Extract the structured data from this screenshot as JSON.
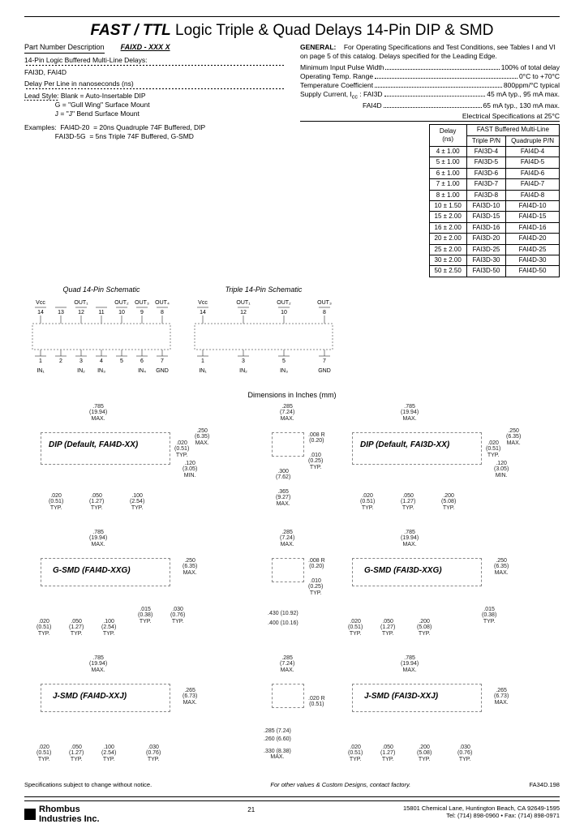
{
  "title_bold": "FAST / TTL",
  "title_rest": " Logic Triple & Quad Delays 14-Pin DIP & SMD",
  "left": {
    "part_label": "Part Number Description",
    "part_code": "FAIXD - XXX X",
    "line1": "14-Pin Logic Buffered Multi-Line Delays:",
    "line2": "FAI3D, FAI4D",
    "line3": "Delay Per Line in nanoseconds (ns)",
    "lead_label": "Lead Style:",
    "lead1": "Blank = Auto-Insertable DIP",
    "lead2": "G = \"Gull Wing\" Surface Mount",
    "lead3": "J = \"J\" Bend Surface Mount",
    "ex_label": "Examples:",
    "ex1a": "FAI4D-20",
    "ex1b": "= 20ns Quadruple 74F Buffered, DIP",
    "ex2a": "FAI3D-5G",
    "ex2b": "= 5ns Triple 74F Buffered, G-SMD"
  },
  "right": {
    "gen_label": "GENERAL:",
    "gen_text": "For Operating Specifications and Test Conditions, see Tables I and VI on page 5 of this catalog. Delays specified for the Leading Edge.",
    "spec1_l": "Minimum Input Pulse Width",
    "spec1_r": "100% of total delay",
    "spec2_l": "Operating Temp. Range",
    "spec2_r": "0°C to +70°C",
    "spec3_l": "Temperature Coefficient",
    "spec3_r": "800ppm/°C typical",
    "spec4_l": "Supply Current, I",
    "spec4_p": "FAI3D",
    "spec4_r": "45 mA typ., 95 mA max.",
    "spec5_p": "FAI4D",
    "spec5_r": "65 mA typ., 130 mA max.",
    "table_title": "Electrical Specifications at 25°C"
  },
  "table": {
    "h1": "Delay",
    "h1b": "(ns)",
    "h2": "FAST Buffered Multi-Line",
    "h2a": "Triple P/N",
    "h2b": "Quadruple P/N",
    "rows": [
      [
        "4 ± 1.00",
        "FAI3D-4",
        "FAI4D-4"
      ],
      [
        "5 ± 1.00",
        "FAI3D-5",
        "FAI4D-5"
      ],
      [
        "6 ± 1.00",
        "FAI3D-6",
        "FAI4D-6"
      ],
      [
        "7 ± 1.00",
        "FAI3D-7",
        "FAI4D-7"
      ],
      [
        "8 ± 1.00",
        "FAI3D-8",
        "FAI4D-8"
      ],
      [
        "10 ± 1.50",
        "FAI3D-10",
        "FAI4D-10"
      ],
      [
        "15 ± 2.00",
        "FAI3D-15",
        "FAI4D-15"
      ],
      [
        "16 ± 2.00",
        "FAI3D-16",
        "FAI4D-16"
      ],
      [
        "20 ± 2.00",
        "FAI3D-20",
        "FAI4D-20"
      ],
      [
        "25 ± 2.00",
        "FAI3D-25",
        "FAI4D-25"
      ],
      [
        "30 ± 2.00",
        "FAI3D-30",
        "FAI4D-30"
      ],
      [
        "50 ± 2.50",
        "FAI3D-50",
        "FAI4D-50"
      ]
    ]
  },
  "schem": {
    "quad_title": "Quad 14-Pin Schematic",
    "triple_title": "Triple 14-Pin Schematic",
    "quad_top": [
      "Vcc",
      "",
      "OUT₁",
      "",
      "OUT₂",
      "OUT₃",
      "OUT₄"
    ],
    "quad_top_n": [
      "14",
      "13",
      "12",
      "11",
      "10",
      "9",
      "8"
    ],
    "quad_bot_n": [
      "1",
      "2",
      "3",
      "4",
      "5",
      "6",
      "7"
    ],
    "quad_bot": [
      "IN₁",
      "",
      "IN₂",
      "IN₃",
      "",
      "IN₄",
      "GND"
    ],
    "tri_top": [
      "Vcc",
      "",
      "OUT₁",
      "",
      "OUT₂",
      "",
      "OUT₃"
    ],
    "tri_top_n": [
      "14",
      "",
      "12",
      "",
      "10",
      "",
      "8"
    ],
    "tri_bot_n": [
      "1",
      "",
      "3",
      "",
      "5",
      "",
      "7"
    ],
    "tri_bot": [
      "IN₁",
      "",
      "IN₂",
      "",
      "IN₃",
      "",
      "GND"
    ]
  },
  "dim_title": "Dimensions in Inches (mm)",
  "pkg": {
    "dip4": "DIP (Default, FAI4D-XX)",
    "dip3": "DIP (Default, FAI3D-XX)",
    "g4": "G-SMD (FAI4D-XXG)",
    "g3": "G-SMD (FAI3D-XXG)",
    "j4": "J-SMD (FAI4D-XXJ)",
    "j3": "J-SMD (FAI3D-XXJ)",
    "d785": ".785\n(19.94)\nMAX.",
    "d285": ".285\n(7.24)\nMAX.",
    "d020": ".020\n(0.51)\nTYP.",
    "d250": ".250\n(6.35)\nMAX.",
    "d120": ".120\n(3.05)\nMIN.",
    "d050": ".050\n(1.27)\nTYP.",
    "d100": ".100\n(2.54)\nTYP.",
    "d300": ".300\n(7.62)",
    "d365": ".365\n(9.27)\nMAX.",
    "d008r": ".008 R\n(0.20)",
    "d010": ".010\n(0.25)\nTYP.",
    "d200": ".200\n(5.08)\nTYP.",
    "d015": ".015\n(0.38)\nTYP.",
    "d030": ".030\n(0.76)\nTYP.",
    "d430": ".430 (10.92)",
    "d400": ".400 (10.16)",
    "d265": ".265\n(6.73)\nMAX.",
    "d020r": ".020 R\n(0.51)",
    "d285w": ".285 (7.24)",
    "d260": ".260 (6.60)",
    "d330": ".330 (8.38)\nMAX."
  },
  "footer": {
    "left": "Specifications subject to change without notice.",
    "center": "For other values & Custom Designs, contact factory.",
    "right": "FA34D.198",
    "company": "Rhombus\nIndustries Inc.",
    "page": "21",
    "addr1": "15801 Chemical Lane, Huntington Beach, CA 92649-1595",
    "addr2": "Tel: (714) 898-0960 • Fax: (714) 898-0971"
  }
}
